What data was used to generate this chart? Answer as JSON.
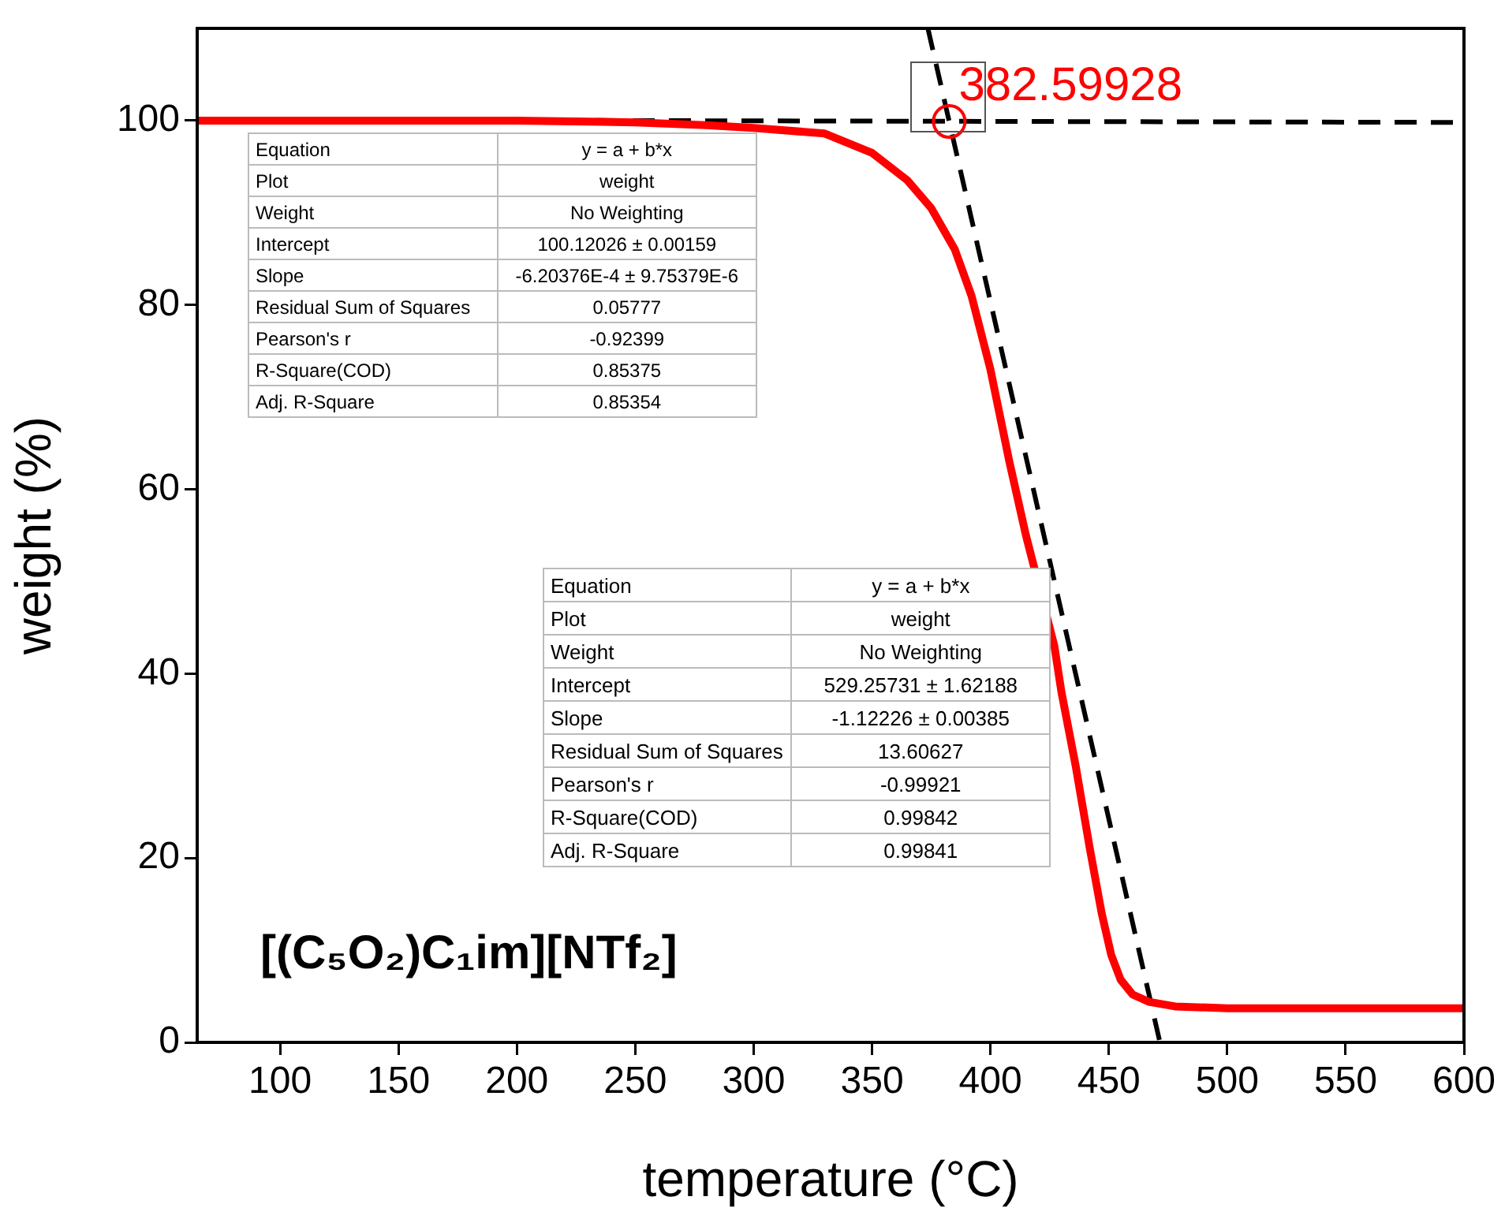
{
  "chart_data": {
    "type": "line",
    "xlabel": "temperature (°C)",
    "ylabel": "weight (%)",
    "xlim": [
      65,
      600
    ],
    "xticks": [
      100,
      150,
      200,
      250,
      300,
      350,
      400,
      450,
      500,
      550,
      600
    ],
    "ylim": [
      0,
      110
    ],
    "yticks": [
      0,
      20,
      40,
      60,
      80,
      100
    ],
    "grid": false,
    "legend": false,
    "series": [
      {
        "color": "#ff0000",
        "line_style": "solid",
        "marker": "none",
        "x": [
          65,
          100,
          150,
          200,
          250,
          280,
          300,
          330,
          350,
          365,
          375,
          385,
          392,
          400,
          408,
          415,
          427,
          430,
          436,
          442,
          447,
          451,
          455,
          460,
          467,
          478,
          500,
          550,
          600
        ],
        "values": [
          100,
          100,
          100,
          100,
          99.8,
          99.5,
          99.2,
          98.6,
          96.5,
          93.5,
          90.5,
          86,
          81,
          73,
          63,
          55,
          43,
          38,
          30,
          21,
          14,
          9.5,
          6.8,
          5.2,
          4.4,
          3.9,
          3.7,
          3.7,
          3.7
        ]
      },
      {
        "color": "#000000",
        "line_style": "dashed",
        "marker": "none",
        "x": [
          65,
          600
        ],
        "values": [
          100.1,
          99.8
        ]
      },
      {
        "color": "#000000",
        "line_style": "dashed",
        "marker": "none",
        "x": [
          373.6,
          471.6
        ],
        "values": [
          110,
          0
        ]
      },
      {
        "type": "scatter",
        "color": "#ff0000",
        "marker": "circle",
        "x": [
          382.59928
        ],
        "values": [
          99.9
        ]
      }
    ],
    "annotations": [
      {
        "text": "382.59928",
        "x": 382.59928,
        "y": 99.88
      },
      "Equation",
      "y = a + b*x",
      "Plot",
      "weight",
      "Weight",
      "No Weighting",
      "Intercept",
      "100.12026 ± 0.00159",
      "Slope",
      "-6.20376E-4 ± 9.75379E-6",
      "Residual Sum of Squares",
      "0.05777",
      "Pearson's r",
      "-0.92399",
      "R-Square(COD)",
      "0.85375",
      "Adj. R-Square",
      "0.85354",
      "Equation",
      "y = a + b*x",
      "Plot",
      "weight",
      "Weight",
      "No Weighting",
      "Intercept",
      "529.25731 ± 1.62188",
      "Slope",
      "-1.12226 ± 0.00385",
      "Residual Sum of Squares",
      "13.60627",
      "Pearson's r",
      "-0.99921",
      "R-Square(COD)",
      "0.99842",
      "Adj. R-Square",
      "0.99841",
      "[(C₅O₂)C₁im][NTf₂]"
    ]
  }
}
